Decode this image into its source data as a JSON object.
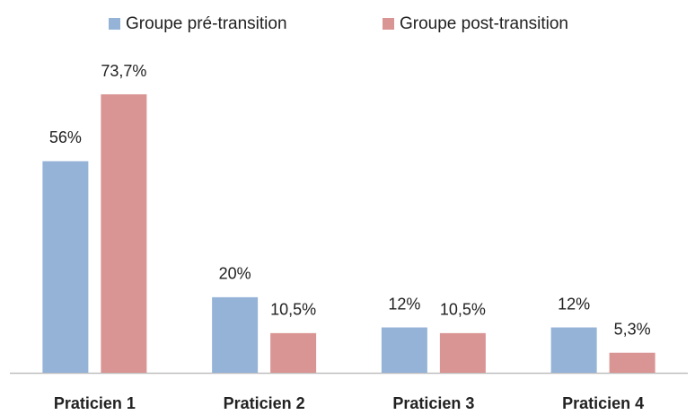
{
  "chart_data": {
    "type": "bar",
    "categories": [
      "Praticien 1",
      "Praticien 2",
      "Praticien 3",
      "Praticien 4"
    ],
    "series": [
      {
        "name": "Groupe pré-transition",
        "color": "#95b3d7",
        "values": [
          56,
          20,
          12,
          12
        ],
        "value_labels": [
          "56%",
          "20%",
          "12%",
          "12%"
        ]
      },
      {
        "name": "Groupe post-transition",
        "color": "#d99594",
        "values": [
          73.7,
          10.5,
          10.5,
          5.3
        ],
        "value_labels": [
          "73,7%",
          "10,5%",
          "10,5%",
          "5,3%"
        ]
      }
    ],
    "legend": "top"
  }
}
